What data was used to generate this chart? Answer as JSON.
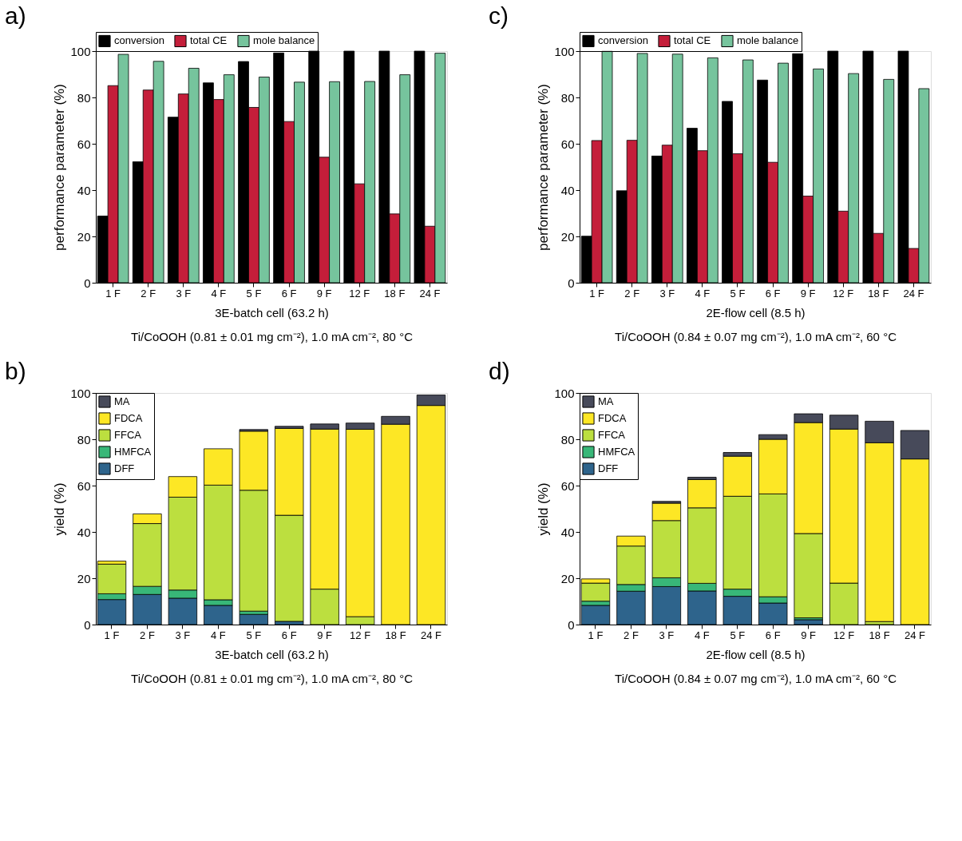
{
  "chart_data": [
    {
      "type": "bar",
      "title": "a)",
      "ylabel": "performance parameter (%)",
      "categories": [
        "1 F",
        "2 F",
        "3 F",
        "4 F",
        "5 F",
        "6 F",
        "9 F",
        "12 F",
        "18 F",
        "24 F"
      ],
      "ylim": [
        0,
        100
      ],
      "yticks": [
        0,
        20,
        40,
        60,
        80,
        100
      ],
      "grid": false,
      "legend": "top",
      "annotations": [
        "3E-batch cell (63.2 h)",
        "Ti/CoOOH (0.81 ± 0.01 mg cm⁻²), 1.0 mA cm⁻², 80 °C"
      ],
      "series": [
        {
          "name": "conversion",
          "color": "#000000",
          "values": [
            28.8,
            52.2,
            71.5,
            86.3,
            95.5,
            99.2,
            100,
            100,
            100,
            100
          ]
        },
        {
          "name": "total CE",
          "color": "#c41e3a",
          "values": [
            85.1,
            83.2,
            81.5,
            79.1,
            75.7,
            69.6,
            54.2,
            42.7,
            29.7,
            24.4
          ]
        },
        {
          "name": "mole balance",
          "color": "#76c49d",
          "values": [
            98.6,
            95.6,
            92.6,
            89.8,
            88.8,
            86.6,
            86.8,
            86.9,
            89.8,
            99.1
          ]
        }
      ]
    },
    {
      "type": "bar",
      "title": "c)",
      "ylabel": "performance parameter (%)",
      "categories": [
        "1 F",
        "2 F",
        "3 F",
        "4 F",
        "5 F",
        "6 F",
        "9 F",
        "12 F",
        "18 F",
        "24 F"
      ],
      "ylim": [
        0,
        100
      ],
      "yticks": [
        0,
        20,
        40,
        60,
        80,
        100
      ],
      "grid": false,
      "legend": "top",
      "annotations": [
        "2E-flow cell (8.5 h)",
        "Ti/CoOOH (0.84 ± 0.07 mg cm⁻²), 1.0 mA cm⁻², 60 °C"
      ],
      "series": [
        {
          "name": "conversion",
          "color": "#000000",
          "values": [
            20.1,
            39.7,
            54.7,
            66.7,
            78.3,
            87.5,
            98.9,
            100,
            100,
            100
          ]
        },
        {
          "name": "total CE",
          "color": "#c41e3a",
          "values": [
            61.4,
            61.5,
            59.4,
            57.0,
            55.7,
            52.0,
            37.4,
            30.9,
            21.3,
            14.8
          ]
        },
        {
          "name": "mole balance",
          "color": "#76c49d",
          "values": [
            99.9,
            99.0,
            98.7,
            97.1,
            96.2,
            94.8,
            92.3,
            90.3,
            87.8,
            83.8
          ]
        }
      ]
    },
    {
      "type": "bar",
      "title": "b)",
      "ylabel": "yield (%)",
      "stacked": true,
      "categories": [
        "1 F",
        "2 F",
        "3 F",
        "4 F",
        "5 F",
        "6 F",
        "9 F",
        "12 F",
        "18 F",
        "24 F"
      ],
      "ylim": [
        0,
        100
      ],
      "yticks": [
        0,
        20,
        40,
        60,
        80,
        100
      ],
      "grid": false,
      "legend": "top left",
      "annotations": [
        "3E-batch cell (63.2 h)",
        "Ti/CoOOH (0.81 ± 0.01 mg cm⁻²), 1.0 mA cm⁻², 80 °C"
      ],
      "series": [
        {
          "name": "DFF",
          "color": "#2e648c",
          "values": [
            10.8,
            13.0,
            11.4,
            8.3,
            4.4,
            1.4,
            0,
            0,
            0,
            0
          ]
        },
        {
          "name": "HMFCA",
          "color": "#38b778",
          "values": [
            2.5,
            3.5,
            3.5,
            2.4,
            1.4,
            0,
            0,
            0,
            0,
            0
          ]
        },
        {
          "name": "FFCA",
          "color": "#bcdf3f",
          "values": [
            12.8,
            27.1,
            40.1,
            49.5,
            52.2,
            45.8,
            15.3,
            3.4,
            0,
            0
          ]
        },
        {
          "name": "FDCA",
          "color": "#fde725",
          "values": [
            1.3,
            4.2,
            8.9,
            15.7,
            25.5,
            37.5,
            69.1,
            80.9,
            86.5,
            94.6
          ]
        },
        {
          "name": "MA",
          "color": "#474a5a",
          "values": [
            0,
            0,
            0,
            0,
            0.7,
            0.9,
            2.2,
            2.7,
            3.4,
            4.5
          ]
        }
      ]
    },
    {
      "type": "bar",
      "title": "d)",
      "ylabel": "yield (%)",
      "stacked": true,
      "categories": [
        "1 F",
        "2 F",
        "3 F",
        "4 F",
        "5 F",
        "6 F",
        "9 F",
        "12 F",
        "18 F",
        "24 F"
      ],
      "ylim": [
        0,
        100
      ],
      "yticks": [
        0,
        20,
        40,
        60,
        80,
        100
      ],
      "grid": false,
      "legend": "top left",
      "annotations": [
        "2E-flow cell (8.5 h)",
        "Ti/CoOOH (0.84 ± 0.07 mg cm⁻²), 1.0 mA cm⁻², 60 °C"
      ],
      "series": [
        {
          "name": "DFF",
          "color": "#2e648c",
          "values": [
            8.3,
            14.4,
            16.4,
            14.5,
            12.2,
            9.3,
            2.1,
            0,
            0,
            0
          ]
        },
        {
          "name": "HMFCA",
          "color": "#38b778",
          "values": [
            1.8,
            2.9,
            3.8,
            3.3,
            3.1,
            2.7,
            0.8,
            0,
            0,
            0
          ]
        },
        {
          "name": "FFCA",
          "color": "#bcdf3f",
          "values": [
            7.8,
            16.6,
            24.7,
            32.6,
            40.1,
            44.4,
            36.4,
            17.9,
            1.3,
            0
          ]
        },
        {
          "name": "FDCA",
          "color": "#fde725",
          "values": [
            1.8,
            4.3,
            7.5,
            12.2,
            17.3,
            23.6,
            47.9,
            66.5,
            77.2,
            71.5
          ]
        },
        {
          "name": "MA",
          "color": "#474a5a",
          "values": [
            0,
            0,
            0.8,
            1.0,
            1.6,
            2.0,
            3.8,
            6.0,
            9.3,
            12.3
          ]
        }
      ]
    }
  ]
}
